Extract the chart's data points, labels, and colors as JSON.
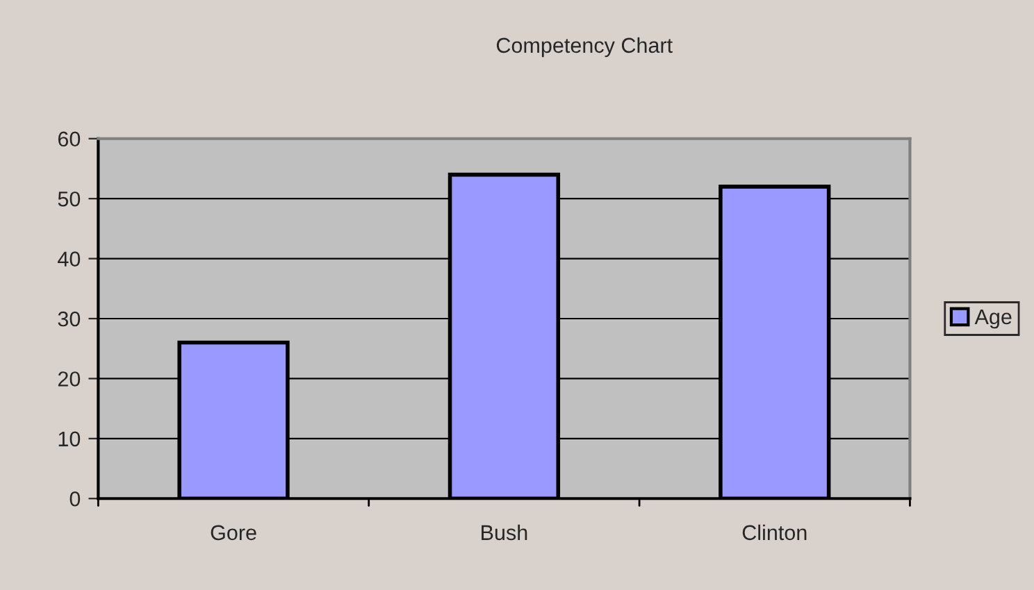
{
  "chart_data": {
    "type": "bar",
    "title": "Competency Chart",
    "categories": [
      "Gore",
      "Bush",
      "Clinton"
    ],
    "series": [
      {
        "name": "Age",
        "color": "#9999ff",
        "values": [
          26,
          54,
          52
        ]
      }
    ],
    "ylim": [
      0,
      60
    ],
    "yticks": [
      0,
      10,
      20,
      30,
      40,
      50,
      60
    ],
    "grid": "y",
    "legend": "right"
  }
}
